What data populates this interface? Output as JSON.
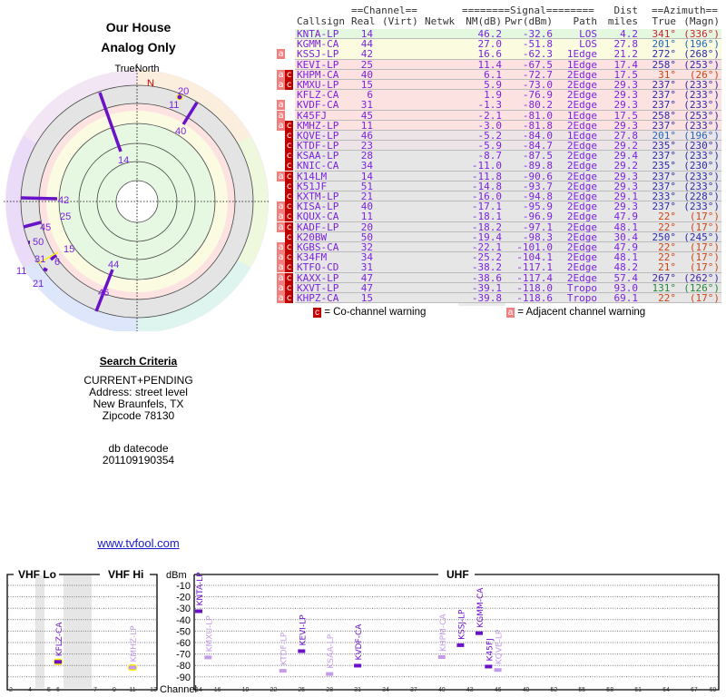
{
  "header": {
    "title": "Our House",
    "subtitle": "Analog Only"
  },
  "radar": {
    "north_label": "TrueNorth",
    "n_label": "N",
    "labels": [
      "14",
      "20",
      "11",
      "40",
      "42",
      "45",
      "25",
      "50",
      "15",
      "6",
      "31",
      "11",
      "21",
      "44",
      "46"
    ]
  },
  "search": {
    "heading": "Search Criteria",
    "lines": [
      "CURRENT+PENDING",
      "Address: street level",
      "New Braunfels, TX",
      "Zipcode 78130"
    ],
    "datecode_label": "db datecode",
    "datecode": "201109190354",
    "link": "www.tvfool.com"
  },
  "table": {
    "group_channel": "==Channel==",
    "group_signal": "========Signal========",
    "group_dist": "Dist",
    "group_azimuth": "==Azimuth==",
    "cols": {
      "callsign": "Callsign",
      "real": "Real",
      "virt": "(Virt)",
      "netwk": "Netwk",
      "nm": "NM(dB)",
      "pwr": "Pwr(dBm)",
      "path": "Path",
      "dist": "miles",
      "true": "True",
      "magn": "(Magn)"
    },
    "rows": [
      {
        "flags": "",
        "callsign": "KNTA-LP",
        "real": "14",
        "nm": "46.2",
        "pwr": "-32.6",
        "path": "LOS",
        "dist": "4.2",
        "true": "341°",
        "magn": "(336°)",
        "band": "#e4f8e0",
        "az_color": "#cc2233"
      },
      {
        "flags": "",
        "callsign": "KGMM-CA",
        "real": "44",
        "nm": "27.0",
        "pwr": "-51.8",
        "path": "LOS",
        "dist": "27.8",
        "true": "201°",
        "magn": "(196°)",
        "band": "#fbfbe0",
        "az_color": "#2266bb"
      },
      {
        "flags": "a",
        "callsign": "KSSJ-LP",
        "real": "42",
        "nm": "16.6",
        "pwr": "-62.3",
        "path": "1Edge",
        "dist": "21.2",
        "true": "272°",
        "magn": "(268°)",
        "band": "#fbfbe0",
        "az_color": "#2a2aaa"
      },
      {
        "flags": "",
        "callsign": "KEVI-LP",
        "real": "25",
        "nm": "11.4",
        "pwr": "-67.5",
        "path": "1Edge",
        "dist": "17.4",
        "true": "258°",
        "magn": "(253°)",
        "band": "#fde2e2",
        "az_color": "#2a2aaa"
      },
      {
        "flags": "ac",
        "callsign": "KHPM-CA",
        "real": "40",
        "nm": "6.1",
        "pwr": "-72.7",
        "path": "2Edge",
        "dist": "17.5",
        "true": "31°",
        "magn": "(26°)",
        "band": "#fde2e2",
        "az_color": "#cc4411"
      },
      {
        "flags": "ac",
        "callsign": "KMXU-LP",
        "real": "15",
        "nm": "5.9",
        "pwr": "-73.0",
        "path": "2Edge",
        "dist": "29.3",
        "true": "237°",
        "magn": "(233°)",
        "band": "#fde2e2",
        "az_color": "#2a2aaa"
      },
      {
        "flags": "",
        "callsign": "KFLZ-CA",
        "real": "6",
        "nm": "1.9",
        "pwr": "-76.9",
        "path": "2Edge",
        "dist": "29.3",
        "true": "237°",
        "magn": "(233°)",
        "band": "#fde2e2",
        "az_color": "#2a2aaa"
      },
      {
        "flags": "a",
        "callsign": "KVDF-CA",
        "real": "31",
        "nm": "-1.3",
        "pwr": "-80.2",
        "path": "2Edge",
        "dist": "29.3",
        "true": "237°",
        "magn": "(233°)",
        "band": "#fde2e2",
        "az_color": "#2a2aaa"
      },
      {
        "flags": "a",
        "callsign": "K45FJ",
        "real": "45",
        "nm": "-2.1",
        "pwr": "-81.0",
        "path": "1Edge",
        "dist": "17.5",
        "true": "258°",
        "magn": "(253°)",
        "band": "#fde2e2",
        "az_color": "#2a2aaa"
      },
      {
        "flags": "ac",
        "callsign": "KMHZ-LP",
        "real": "11",
        "nm": "-3.0",
        "pwr": "-81.8",
        "path": "2Edge",
        "dist": "29.3",
        "true": "237°",
        "magn": "(233°)",
        "band": "#fde2e2",
        "az_color": "#2a2aaa"
      },
      {
        "flags": "c",
        "callsign": "KQVE-LP",
        "real": "46",
        "nm": "-5.2",
        "pwr": "-84.0",
        "path": "1Edge",
        "dist": "27.8",
        "true": "201°",
        "magn": "(196°)",
        "band": "#ece4e6",
        "az_color": "#2266bb"
      },
      {
        "flags": "c",
        "callsign": "KTDF-LP",
        "real": "23",
        "nm": "-5.9",
        "pwr": "-84.7",
        "path": "2Edge",
        "dist": "29.2",
        "true": "235°",
        "magn": "(230°)",
        "band": "#ece4e6",
        "az_color": "#2a2aaa"
      },
      {
        "flags": "c",
        "callsign": "KSAA-LP",
        "real": "28",
        "nm": "-8.7",
        "pwr": "-87.5",
        "path": "2Edge",
        "dist": "29.4",
        "true": "237°",
        "magn": "(233°)",
        "band": "#e6e6e6",
        "az_color": "#2a2aaa"
      },
      {
        "flags": "c",
        "callsign": "KNIC-CA",
        "real": "34",
        "nm": "-11.0",
        "pwr": "-89.8",
        "path": "2Edge",
        "dist": "29.2",
        "true": "235°",
        "magn": "(230°)",
        "band": "#e6e6e6",
        "az_color": "#2a2aaa"
      },
      {
        "flags": "ac",
        "callsign": "K14LM",
        "real": "14",
        "nm": "-11.8",
        "pwr": "-90.6",
        "path": "2Edge",
        "dist": "29.3",
        "true": "237°",
        "magn": "(233°)",
        "band": "#e6e6e6",
        "az_color": "#2a2aaa"
      },
      {
        "flags": "c",
        "callsign": "K51JF",
        "real": "51",
        "nm": "-14.8",
        "pwr": "-93.7",
        "path": "2Edge",
        "dist": "29.3",
        "true": "237°",
        "magn": "(233°)",
        "band": "#e6e6e6",
        "az_color": "#2a2aaa"
      },
      {
        "flags": "c",
        "callsign": "KXTM-LP",
        "real": "21",
        "nm": "-16.0",
        "pwr": "-94.8",
        "path": "2Edge",
        "dist": "29.1",
        "true": "233°",
        "magn": "(228°)",
        "band": "#e6e6e6",
        "az_color": "#2a2aaa"
      },
      {
        "flags": "ac",
        "callsign": "KISA-LP",
        "real": "40",
        "nm": "-17.1",
        "pwr": "-95.9",
        "path": "2Edge",
        "dist": "29.3",
        "true": "237°",
        "magn": "(233°)",
        "band": "#e6e6e6",
        "az_color": "#2a2aaa"
      },
      {
        "flags": "ac",
        "callsign": "KQUX-CA",
        "real": "11",
        "nm": "-18.1",
        "pwr": "-96.9",
        "path": "2Edge",
        "dist": "47.9",
        "true": "22°",
        "magn": "(17°)",
        "band": "#e6e6e6",
        "az_color": "#cc4411"
      },
      {
        "flags": "ac",
        "callsign": "KADF-LP",
        "real": "20",
        "nm": "-18.2",
        "pwr": "-97.1",
        "path": "2Edge",
        "dist": "48.1",
        "true": "22°",
        "magn": "(17°)",
        "band": "#e6e6e6",
        "az_color": "#cc4411"
      },
      {
        "flags": "c",
        "callsign": "K20BW",
        "real": "50",
        "nm": "-19.4",
        "pwr": "-98.3",
        "path": "2Edge",
        "dist": "30.4",
        "true": "250°",
        "magn": "(245°)",
        "band": "#e6e6e6",
        "az_color": "#2a2aaa"
      },
      {
        "flags": "ac",
        "callsign": "KGBS-CA",
        "real": "32",
        "nm": "-22.1",
        "pwr": "-101.0",
        "path": "2Edge",
        "dist": "47.9",
        "true": "22°",
        "magn": "(17°)",
        "band": "#e6e6e6",
        "az_color": "#cc4411"
      },
      {
        "flags": "ac",
        "callsign": "K34FM",
        "real": "34",
        "nm": "-25.2",
        "pwr": "-104.1",
        "path": "2Edge",
        "dist": "48.1",
        "true": "22°",
        "magn": "(17°)",
        "band": "#e6e6e6",
        "az_color": "#cc4411"
      },
      {
        "flags": "ac",
        "callsign": "KTFO-CD",
        "real": "31",
        "nm": "-38.2",
        "pwr": "-117.1",
        "path": "2Edge",
        "dist": "48.2",
        "true": "21°",
        "magn": "(17°)",
        "band": "#e6e6e6",
        "az_color": "#cc4411"
      },
      {
        "flags": "ac",
        "callsign": "KAXX-LP",
        "real": "47",
        "nm": "-38.6",
        "pwr": "-117.4",
        "path": "2Edge",
        "dist": "57.4",
        "true": "267°",
        "magn": "(262°)",
        "band": "#e6e6e6",
        "az_color": "#4422aa"
      },
      {
        "flags": "ac",
        "callsign": "KXVT-LP",
        "real": "47",
        "nm": "-39.1",
        "pwr": "-118.0",
        "path": "Tropo",
        "dist": "93.0",
        "true": "131°",
        "magn": "(126°)",
        "band": "#e6e6e6",
        "az_color": "#228833"
      },
      {
        "flags": "ac",
        "callsign": "KHPZ-CA",
        "real": "15",
        "nm": "-39.8",
        "pwr": "-118.6",
        "path": "Tropo",
        "dist": "69.1",
        "true": "22°",
        "magn": "(17°)",
        "band": "#e6e6e6",
        "az_color": "#cc4411"
      }
    ],
    "legend": {
      "co_glyph": "c",
      "co_text": "= Co-channel warning",
      "adj_glyph": "a",
      "adj_text": "= Adjacent channel warning"
    }
  },
  "spectrum": {
    "vhf_lo": "VHF Lo",
    "vhf_hi": "VHF Hi",
    "uhf": "UHF",
    "dbm_label": "dBm",
    "channel_label": "Channel",
    "dbm_ticks": [
      "-10",
      "-20",
      "-30",
      "-40",
      "-50",
      "-60",
      "-70",
      "-80",
      "-90"
    ],
    "vhf_ticks": [
      "2",
      "4",
      "5",
      "6",
      "7",
      "9",
      "11",
      "13"
    ],
    "uhf_ticks": [
      "14",
      "16",
      "19",
      "22",
      "25",
      "28",
      "31",
      "34",
      "37",
      "40",
      "43",
      "46",
      "49",
      "52",
      "55",
      "58",
      "61",
      "64",
      "67",
      "69"
    ],
    "markers": [
      {
        "callsign": "KFLZ-CA",
        "channel": 6,
        "dbm": -76.9,
        "strong": true,
        "warn": true
      },
      {
        "callsign": "KMHZ-LP",
        "channel": 11,
        "dbm": -81.8,
        "strong": false,
        "warn": true
      },
      {
        "callsign": "KNTA-LP",
        "channel": 14,
        "dbm": -32.6,
        "strong": true
      },
      {
        "callsign": "KMXU-LP",
        "channel": 15,
        "dbm": -73.0,
        "strong": false
      },
      {
        "callsign": "KTDF-LP",
        "channel": 23,
        "dbm": -84.7,
        "strong": false
      },
      {
        "callsign": "KEVI-LP",
        "channel": 25,
        "dbm": -67.5,
        "strong": true
      },
      {
        "callsign": "KSAA-LP",
        "channel": 28,
        "dbm": -87.5,
        "strong": false
      },
      {
        "callsign": "KVDF-CA",
        "channel": 31,
        "dbm": -80.2,
        "strong": true
      },
      {
        "callsign": "KHPM-CA",
        "channel": 40,
        "dbm": -72.7,
        "strong": false
      },
      {
        "callsign": "KSSJ-LP",
        "channel": 42,
        "dbm": -62.3,
        "strong": true
      },
      {
        "callsign": "KGMM-CA",
        "channel": 44,
        "dbm": -51.8,
        "strong": true
      },
      {
        "callsign": "K45FJ",
        "channel": 45,
        "dbm": -81.0,
        "strong": true
      },
      {
        "callsign": "KQVE-LP",
        "channel": 46,
        "dbm": -84.0,
        "strong": false
      }
    ]
  }
}
